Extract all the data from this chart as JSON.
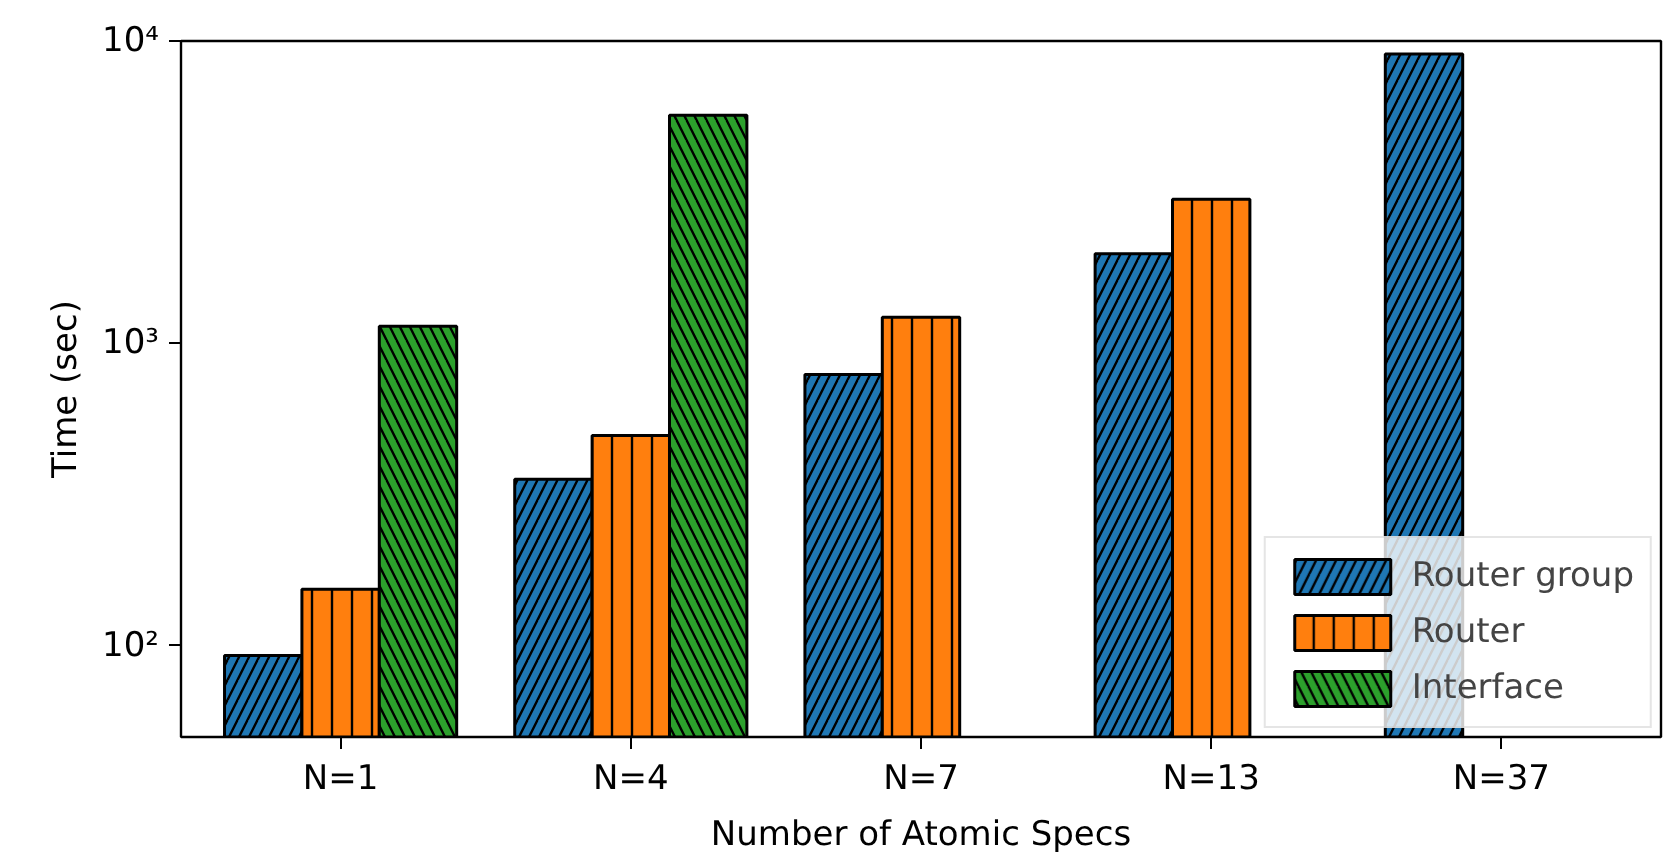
{
  "chart_data": {
    "type": "bar",
    "xlabel": "Number of Atomic Specs",
    "ylabel": "Time (sec)",
    "categories": [
      "N=1",
      "N=4",
      "N=7",
      "N=13",
      "N=37"
    ],
    "series": [
      {
        "name": "Router group",
        "color": "#1f77b4",
        "values": [
          93,
          356,
          790,
          1980,
          9060
        ]
      },
      {
        "name": "Router",
        "color": "#ff7f0e",
        "values": [
          154,
          496,
          1220,
          3000,
          null
        ]
      },
      {
        "name": "Interface",
        "color": "#2ca02c",
        "values": [
          1140,
          5680,
          null,
          null,
          null
        ]
      }
    ],
    "log": true,
    "ylim": [
      50,
      10000
    ],
    "yticks": [
      {
        "value": 100,
        "label": "10²"
      },
      {
        "value": 1000,
        "label": "10³"
      },
      {
        "value": 10000,
        "label": "10⁴"
      }
    ],
    "grid": false,
    "legend": "bottom right"
  }
}
